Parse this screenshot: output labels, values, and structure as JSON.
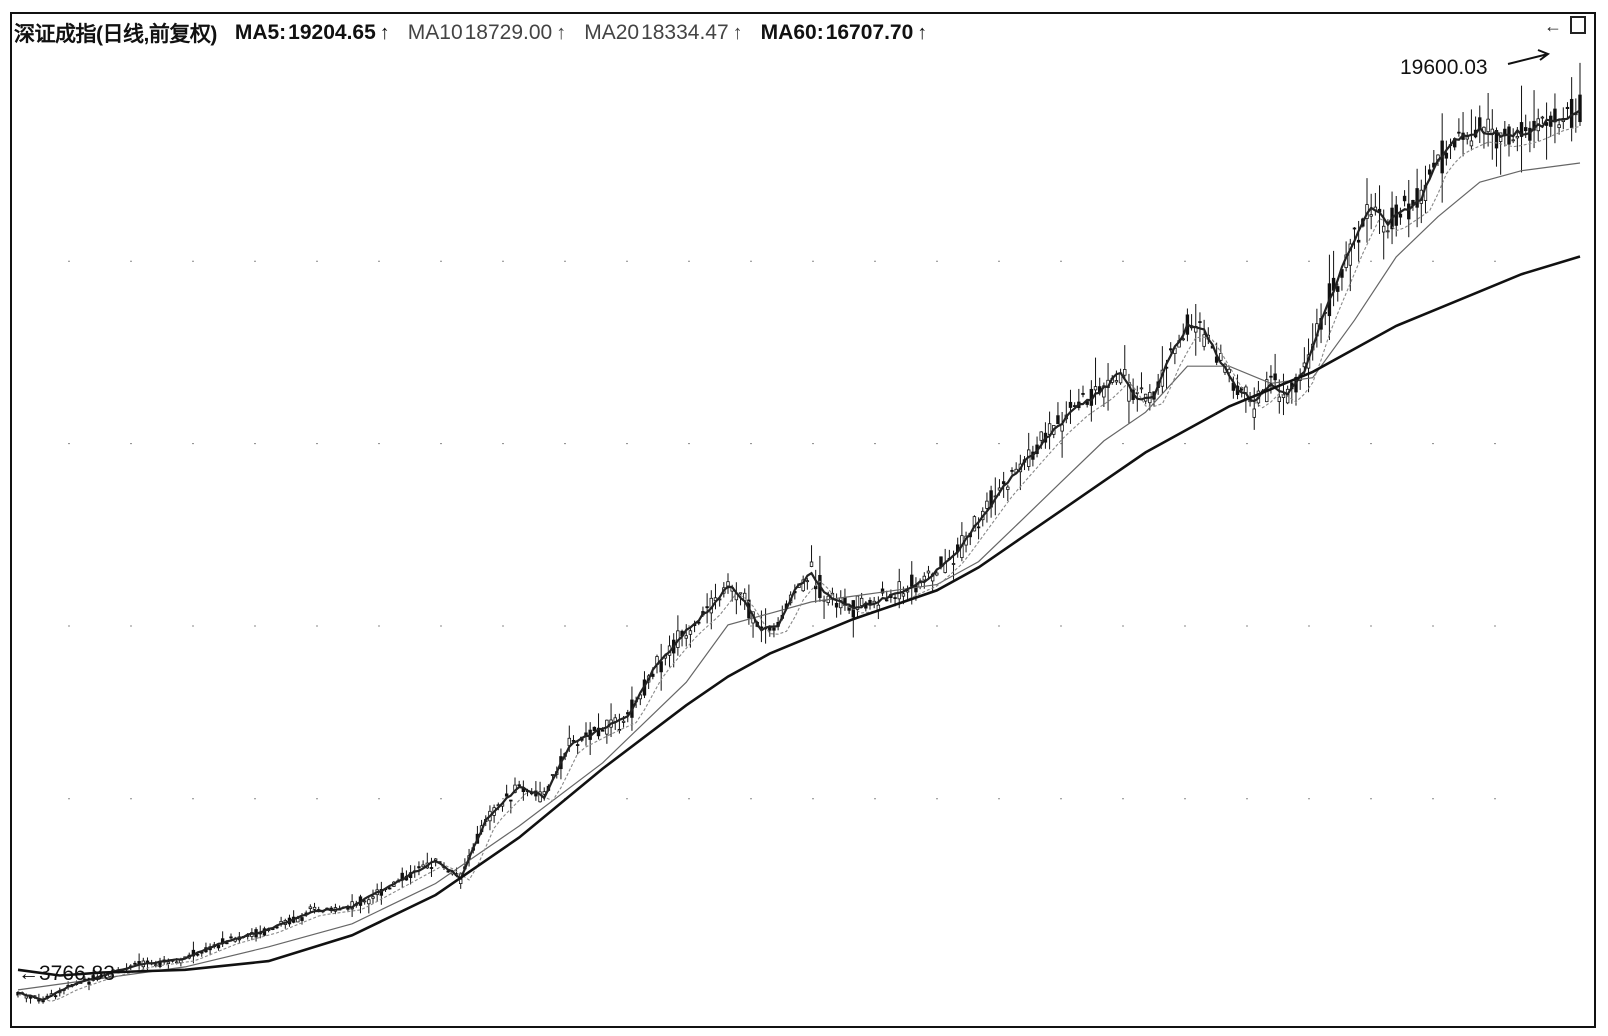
{
  "header": {
    "title": "深证成指(日线,前复权)",
    "ma5_label": "MA5:",
    "ma5_value": "19204.65",
    "ma10_label": "MA10",
    "ma10_value": "18729.00",
    "ma20_label": "MA20",
    "ma20_value": "18334.47",
    "ma60_label": "MA60:",
    "ma60_value": "16707.70",
    "arrow": "↑"
  },
  "colors": {
    "line": "#111111",
    "ma_thin": "#555555",
    "grid_dot": "#888888",
    "frame": "#111111"
  },
  "chart_data": {
    "type": "line",
    "series_kind": "candlestick with moving averages",
    "high_label": "19600.03",
    "low_label": "3766.83",
    "grid": "dotted horizontal",
    "price_path": [
      [
        0,
        3900
      ],
      [
        3,
        3780
      ],
      [
        6,
        4000
      ],
      [
        10,
        4200
      ],
      [
        15,
        4400
      ],
      [
        20,
        4500
      ],
      [
        25,
        4800
      ],
      [
        30,
        5000
      ],
      [
        35,
        5300
      ],
      [
        40,
        5400
      ],
      [
        45,
        5800
      ],
      [
        50,
        6200
      ],
      [
        53,
        5900
      ],
      [
        56,
        6900
      ],
      [
        60,
        7500
      ],
      [
        63,
        7300
      ],
      [
        66,
        8200
      ],
      [
        70,
        8500
      ],
      [
        73,
        8700
      ],
      [
        76,
        9500
      ],
      [
        80,
        10200
      ],
      [
        83,
        10600
      ],
      [
        85,
        11000
      ],
      [
        87,
        10700
      ],
      [
        89,
        10200
      ],
      [
        91,
        10300
      ],
      [
        93,
        10900
      ],
      [
        95,
        11200
      ],
      [
        97,
        10800
      ],
      [
        100,
        10600
      ],
      [
        103,
        10700
      ],
      [
        106,
        10900
      ],
      [
        109,
        11100
      ],
      [
        112,
        11500
      ],
      [
        115,
        12100
      ],
      [
        118,
        12700
      ],
      [
        121,
        13200
      ],
      [
        124,
        13700
      ],
      [
        127,
        14100
      ],
      [
        130,
        14400
      ],
      [
        132,
        14700
      ],
      [
        134,
        14200
      ],
      [
        136,
        14300
      ],
      [
        138,
        15000
      ],
      [
        140,
        15500
      ],
      [
        142,
        15400
      ],
      [
        144,
        14900
      ],
      [
        146,
        14400
      ],
      [
        148,
        14200
      ],
      [
        150,
        14500
      ],
      [
        152,
        14300
      ],
      [
        154,
        14700
      ],
      [
        156,
        15600
      ],
      [
        158,
        16300
      ],
      [
        160,
        17000
      ],
      [
        162,
        17600
      ],
      [
        164,
        17300
      ],
      [
        166,
        17500
      ],
      [
        168,
        17700
      ],
      [
        170,
        18400
      ],
      [
        172,
        18700
      ],
      [
        175,
        18900
      ],
      [
        178,
        18800
      ],
      [
        181,
        18900
      ],
      [
        184,
        19100
      ],
      [
        187,
        19204
      ]
    ],
    "ma60_path": [
      [
        0,
        4300
      ],
      [
        5,
        4200
      ],
      [
        10,
        4250
      ],
      [
        20,
        4300
      ],
      [
        30,
        4450
      ],
      [
        40,
        4900
      ],
      [
        50,
        5600
      ],
      [
        60,
        6600
      ],
      [
        70,
        7800
      ],
      [
        80,
        8900
      ],
      [
        85,
        9400
      ],
      [
        90,
        9800
      ],
      [
        95,
        10100
      ],
      [
        100,
        10400
      ],
      [
        110,
        10900
      ],
      [
        115,
        11300
      ],
      [
        120,
        11800
      ],
      [
        125,
        12300
      ],
      [
        130,
        12800
      ],
      [
        135,
        13300
      ],
      [
        140,
        13700
      ],
      [
        145,
        14100
      ],
      [
        150,
        14400
      ],
      [
        155,
        14700
      ],
      [
        160,
        15100
      ],
      [
        165,
        15500
      ],
      [
        170,
        15800
      ],
      [
        175,
        16100
      ],
      [
        180,
        16400
      ],
      [
        187,
        16707
      ]
    ],
    "ma20_path": [
      [
        0,
        3950
      ],
      [
        5,
        4050
      ],
      [
        10,
        4150
      ],
      [
        20,
        4350
      ],
      [
        30,
        4700
      ],
      [
        40,
        5100
      ],
      [
        50,
        5800
      ],
      [
        60,
        6800
      ],
      [
        70,
        7900
      ],
      [
        80,
        9300
      ],
      [
        85,
        10300
      ],
      [
        90,
        10500
      ],
      [
        95,
        10700
      ],
      [
        100,
        10800
      ],
      [
        110,
        11000
      ],
      [
        115,
        11400
      ],
      [
        120,
        12100
      ],
      [
        125,
        12800
      ],
      [
        130,
        13500
      ],
      [
        135,
        14000
      ],
      [
        140,
        14800
      ],
      [
        145,
        14800
      ],
      [
        150,
        14500
      ],
      [
        155,
        14600
      ],
      [
        160,
        15600
      ],
      [
        165,
        16700
      ],
      [
        170,
        17400
      ],
      [
        175,
        18000
      ],
      [
        180,
        18200
      ],
      [
        187,
        18334
      ]
    ],
    "ylim": [
      3600,
      20300
    ],
    "xlim": [
      0,
      187
    ]
  }
}
